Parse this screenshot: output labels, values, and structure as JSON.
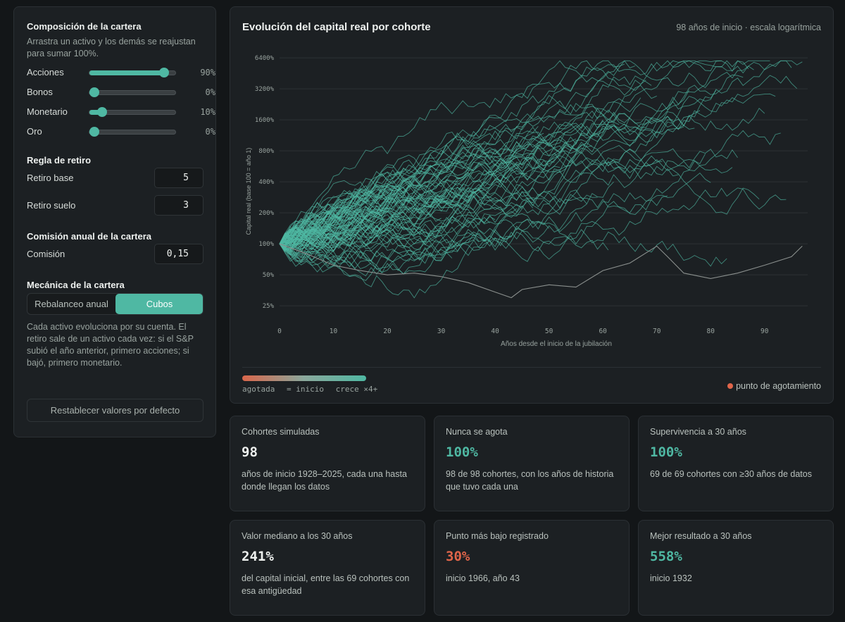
{
  "sidebar": {
    "composition_title": "Composición de la cartera",
    "composition_hint": "Arrastra un activo y los demás se reajustan para sumar 100%.",
    "assets": [
      {
        "label": "Acciones",
        "value": 0.9,
        "display": "90%"
      },
      {
        "label": "Bonos",
        "value": 0.0,
        "display": "0%"
      },
      {
        "label": "Monetario",
        "value": 0.1,
        "display": "10%"
      },
      {
        "label": "Oro",
        "value": 0.0,
        "display": "0%"
      }
    ],
    "withdrawal_title": "Regla de retiro",
    "base_label": "Retiro base",
    "base_value": "5",
    "floor_label": "Retiro suelo",
    "floor_value": "3",
    "fee_title": "Comisión anual de la cartera",
    "fee_label": "Comisión",
    "fee_value": "0,15",
    "mechanics_title": "Mecánica de la cartera",
    "mode_rebalance": "Rebalanceo anual",
    "mode_buckets": "Cubos",
    "mode_selected": "Cubos",
    "mechanics_desc": "Cada activo evoluciona por su cuenta. El retiro sale de un activo cada vez: si el S&P subió el año anterior, primero acciones; si bajó, primero monetario.",
    "reset_label": "Restablecer valores por defecto"
  },
  "chart_panel": {
    "title": "Evolución del capital real por cohorte",
    "subtitle": "98 años de inicio · escala logarítmica",
    "legend_depleted": "agotada",
    "legend_start": "= inicio",
    "legend_grows": "crece ×4+",
    "depletion_label": "punto de agotamiento",
    "colors": {
      "grow": "#4fb8a3",
      "depleted": "#e0654a",
      "neutral": "#8a8f8d"
    }
  },
  "chart_data": {
    "type": "line",
    "xlabel": "Años desde el inicio de la jubilación",
    "ylabel": "Capital real (base 100 = año 1)",
    "y_scale": "log",
    "y_ticks": [
      "25%",
      "50%",
      "100%",
      "200%",
      "400%",
      "800%",
      "1600%",
      "3200%",
      "6400%"
    ],
    "y_tick_values": [
      25,
      50,
      100,
      200,
      400,
      800,
      1600,
      3200,
      6400
    ],
    "x_ticks": [
      "0",
      "10",
      "20",
      "30",
      "40",
      "50",
      "60",
      "70",
      "80",
      "90"
    ],
    "x_tick_values": [
      0,
      10,
      20,
      30,
      40,
      50,
      60,
      70,
      80,
      90
    ],
    "xlim": [
      0,
      98
    ],
    "ylim": [
      18,
      8000
    ],
    "grid": true,
    "series_count": 98,
    "highlighted_series": [
      {
        "x": [
          0,
          5,
          10,
          15,
          20,
          25,
          30,
          35,
          40,
          43,
          45,
          50,
          55,
          60,
          65,
          70,
          72,
          75,
          80,
          85,
          90,
          95,
          97
        ],
        "y": [
          100,
          80,
          62,
          55,
          50,
          52,
          48,
          42,
          34,
          30,
          36,
          40,
          38,
          55,
          65,
          95,
          75,
          52,
          46,
          52,
          62,
          75,
          95
        ]
      }
    ]
  },
  "stats": [
    {
      "label": "Cohortes simuladas",
      "value": "98",
      "tone": "#eef1ef",
      "desc": "años de inicio 1928–2025, cada una hasta donde llegan los datos"
    },
    {
      "label": "Nunca se agota",
      "value": "100%",
      "tone": "#4fb8a3",
      "desc": "98 de 98 cohortes, con los años de historia que tuvo cada una"
    },
    {
      "label": "Supervivencia a 30 años",
      "value": "100%",
      "tone": "#4fb8a3",
      "desc": "69 de 69 cohortes con ≥30 años de datos"
    },
    {
      "label": "Valor mediano a los 30 años",
      "value": "241%",
      "tone": "#eef1ef",
      "desc": "del capital inicial, entre las 69 cohortes con esa antigüedad"
    },
    {
      "label": "Punto más bajo registrado",
      "value": "30%",
      "tone": "#e0654a",
      "desc": "inicio 1966, año 43"
    },
    {
      "label": "Mejor resultado a 30 años",
      "value": "558%",
      "tone": "#4fb8a3",
      "desc": "inicio 1932"
    }
  ]
}
